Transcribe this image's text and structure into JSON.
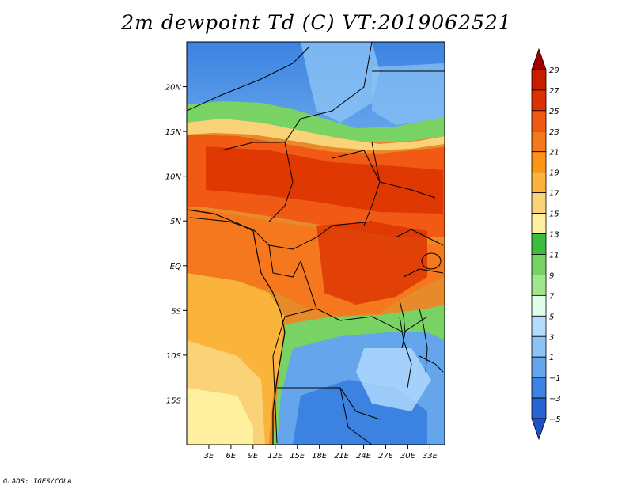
{
  "title": "2m dewpoint Td (C) VT:2019062521",
  "credit": "GrADS: IGES/COLA",
  "map": {
    "region": "Central Africa",
    "lon_range": [
      0,
      35
    ],
    "lat_range": [
      -20,
      25
    ],
    "lat_ticks": [
      {
        "lat": 20,
        "label": "20N"
      },
      {
        "lat": 15,
        "label": "15N"
      },
      {
        "lat": 10,
        "label": "10N"
      },
      {
        "lat": 5,
        "label": "5N"
      },
      {
        "lat": 0,
        "label": "EQ"
      },
      {
        "lat": -5,
        "label": "5S"
      },
      {
        "lat": -10,
        "label": "10S"
      },
      {
        "lat": -15,
        "label": "15S"
      }
    ],
    "lon_ticks": [
      {
        "lon": 3,
        "label": "3E"
      },
      {
        "lon": 6,
        "label": "6E"
      },
      {
        "lon": 9,
        "label": "9E"
      },
      {
        "lon": 12,
        "label": "12E"
      },
      {
        "lon": 15,
        "label": "15E"
      },
      {
        "lon": 18,
        "label": "18E"
      },
      {
        "lon": 21,
        "label": "21E"
      },
      {
        "lon": 24,
        "label": "24E"
      },
      {
        "lon": 27,
        "label": "27E"
      },
      {
        "lon": 30,
        "label": "30E"
      },
      {
        "lon": 33,
        "label": "33E"
      }
    ]
  },
  "colorbar": {
    "labels": [
      "29",
      "27",
      "25",
      "23",
      "21",
      "19",
      "17",
      "15",
      "13",
      "11",
      "9",
      "7",
      "5",
      "3",
      "1",
      "−1",
      "−3",
      "−5"
    ],
    "colors": [
      "#a50000",
      "#c81e00",
      "#dc3200",
      "#f05a14",
      "#f5781e",
      "#fa9614",
      "#fab43c",
      "#fad278",
      "#fff0a0",
      "#3cbe3c",
      "#78d264",
      "#a0e68c",
      "#e1ffe6",
      "#b4dcff",
      "#8cc3f5",
      "#64a5eb",
      "#3c82e1",
      "#2864d2",
      "#1e50c8"
    ]
  }
}
